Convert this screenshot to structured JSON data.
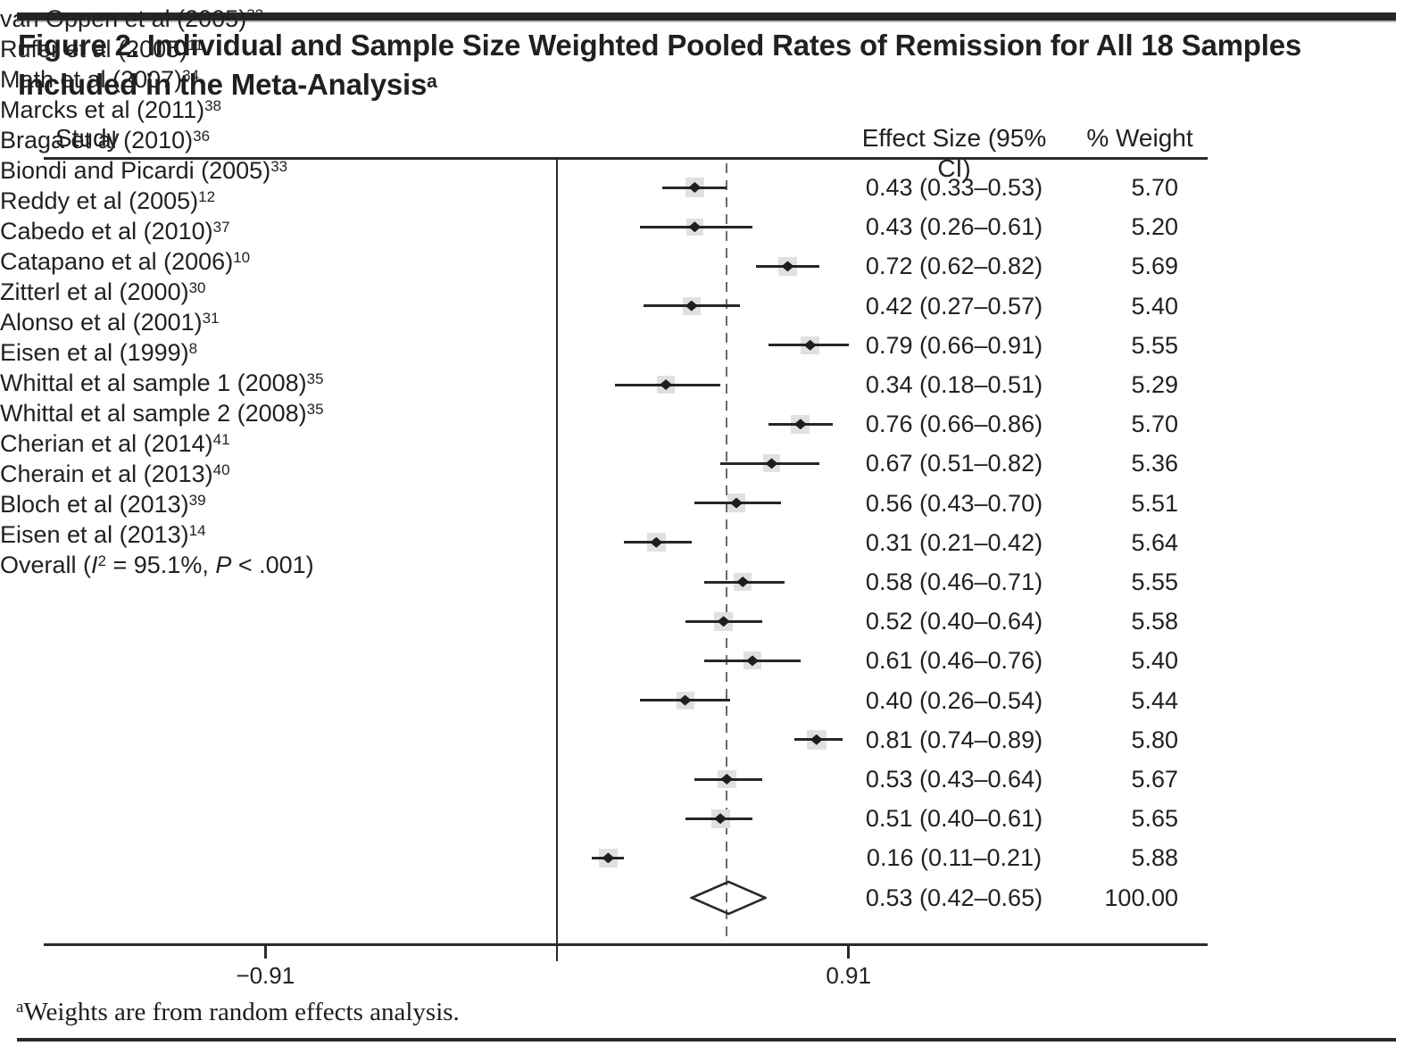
{
  "title": {
    "line1": "Figure 2. Individual and Sample Size Weighted Pooled Rates of Remission for All 18 Samples",
    "line2": "Included in the Meta-Analysis",
    "line2_sup": "a"
  },
  "columns": {
    "study": "Study",
    "effect": "Effect Size (95% CI)",
    "weight": "% Weight"
  },
  "footnote": {
    "sup": "a",
    "text": "Weights are from random effects analysis."
  },
  "chart_data": {
    "type": "scatter",
    "subtype": "forest_plot",
    "x_null_line": 0,
    "x_pooled_line": 0.53,
    "x_ticks": [
      -0.91,
      0.91
    ],
    "x_tick_labels": [
      "−0.91",
      "0.91"
    ],
    "studies": [
      {
        "label": "van Oppen et al (2005)",
        "ref": "32",
        "effect": 0.43,
        "ci_low": 0.33,
        "ci_high": 0.53,
        "effect_text": "0.43 (0.33–0.53)",
        "weight": "5.70"
      },
      {
        "label": "Rufer et al (2005)",
        "ref": "11",
        "effect": 0.43,
        "ci_low": 0.26,
        "ci_high": 0.61,
        "effect_text": "0.43 (0.26–0.61)",
        "weight": "5.20"
      },
      {
        "label": "Math et al (2007)",
        "ref": "34",
        "effect": 0.72,
        "ci_low": 0.62,
        "ci_high": 0.82,
        "effect_text": "0.72 (0.62–0.82)",
        "weight": "5.69"
      },
      {
        "label": "Marcks et al (2011)",
        "ref": "38",
        "effect": 0.42,
        "ci_low": 0.27,
        "ci_high": 0.57,
        "effect_text": "0.42 (0.27–0.57)",
        "weight": "5.40"
      },
      {
        "label": "Braga et al (2010)",
        "ref": "36",
        "effect": 0.79,
        "ci_low": 0.66,
        "ci_high": 0.91,
        "effect_text": "0.79 (0.66–0.91)",
        "weight": "5.55"
      },
      {
        "label": "Biondi and Picardi (2005)",
        "ref": "33",
        "effect": 0.34,
        "ci_low": 0.18,
        "ci_high": 0.51,
        "effect_text": "0.34 (0.18–0.51)",
        "weight": "5.29"
      },
      {
        "label": "Reddy et al (2005)",
        "ref": "12",
        "effect": 0.76,
        "ci_low": 0.66,
        "ci_high": 0.86,
        "effect_text": "0.76 (0.66–0.86)",
        "weight": "5.70"
      },
      {
        "label": "Cabedo et al (2010)",
        "ref": "37",
        "effect": 0.67,
        "ci_low": 0.51,
        "ci_high": 0.82,
        "effect_text": "0.67 (0.51–0.82)",
        "weight": "5.36"
      },
      {
        "label": "Catapano et al (2006)",
        "ref": "10",
        "effect": 0.56,
        "ci_low": 0.43,
        "ci_high": 0.7,
        "effect_text": "0.56 (0.43–0.70)",
        "weight": "5.51"
      },
      {
        "label": "Zitterl et al (2000)",
        "ref": "30",
        "effect": 0.31,
        "ci_low": 0.21,
        "ci_high": 0.42,
        "effect_text": "0.31 (0.21–0.42)",
        "weight": "5.64"
      },
      {
        "label": "Alonso et al (2001)",
        "ref": "31",
        "effect": 0.58,
        "ci_low": 0.46,
        "ci_high": 0.71,
        "effect_text": "0.58 (0.46–0.71)",
        "weight": "5.55"
      },
      {
        "label": "Eisen et al (1999)",
        "ref": "8",
        "effect": 0.52,
        "ci_low": 0.4,
        "ci_high": 0.64,
        "effect_text": "0.52 (0.40–0.64)",
        "weight": "5.58"
      },
      {
        "label": "Whittal et al sample 1 (2008)",
        "ref": "35",
        "effect": 0.61,
        "ci_low": 0.46,
        "ci_high": 0.76,
        "effect_text": "0.61 (0.46–0.76)",
        "weight": "5.40"
      },
      {
        "label": "Whittal et al sample 2 (2008)",
        "ref": "35",
        "effect": 0.4,
        "ci_low": 0.26,
        "ci_high": 0.54,
        "effect_text": "0.40 (0.26–0.54)",
        "weight": "5.44"
      },
      {
        "label": "Cherian et al (2014)",
        "ref": "41",
        "effect": 0.81,
        "ci_low": 0.74,
        "ci_high": 0.89,
        "effect_text": "0.81 (0.74–0.89)",
        "weight": "5.80"
      },
      {
        "label": "Cherain et al (2013)",
        "ref": "40",
        "effect": 0.53,
        "ci_low": 0.43,
        "ci_high": 0.64,
        "effect_text": "0.53 (0.43–0.64)",
        "weight": "5.67"
      },
      {
        "label": "Bloch et al (2013)",
        "ref": "39",
        "effect": 0.51,
        "ci_low": 0.4,
        "ci_high": 0.61,
        "effect_text": "0.51 (0.40–0.61)",
        "weight": "5.65"
      },
      {
        "label": "Eisen et al (2013)",
        "ref": "14",
        "effect": 0.16,
        "ci_low": 0.11,
        "ci_high": 0.21,
        "effect_text": "0.16 (0.11–0.21)",
        "weight": "5.88"
      }
    ],
    "overall": {
      "label_parts": {
        "pre": "Overall (",
        "i": "I",
        "i_sup": "2",
        "mid": " = 95.1%, ",
        "p": "P",
        "post": " < .001)"
      },
      "heterogeneity_i2": "95.1%",
      "p_value": "P < .001",
      "effect": 0.53,
      "ci_low": 0.42,
      "ci_high": 0.65,
      "effect_text": "0.53 (0.42–0.65)",
      "weight": "100.00"
    }
  },
  "colors": {
    "text": "#232021",
    "line": "#2a2a2a",
    "weight_box": "#e0e0e0",
    "diamond": "#1e1e1e",
    "dashed_line": "#6a6a6a",
    "top_bar": "#272526",
    "background": "#ffffff"
  }
}
